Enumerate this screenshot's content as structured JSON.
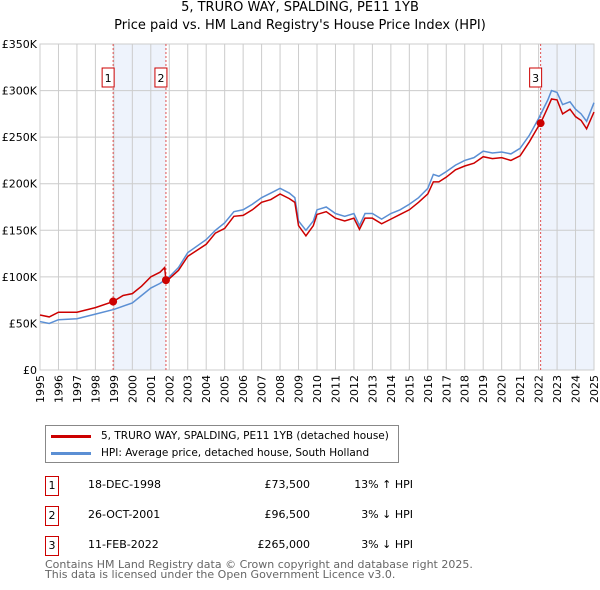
{
  "chart_data": {
    "type": "line",
    "title": "5, TRURO WAY, SPALDING, PE11 1YB",
    "subtitle": "Price paid vs. HM Land Registry's House Price Index (HPI)",
    "xlim": [
      1995,
      2025
    ],
    "ylim": [
      0,
      350000
    ],
    "yticks": [
      0,
      50000,
      100000,
      150000,
      200000,
      250000,
      300000,
      350000
    ],
    "ytick_labels": [
      "£0",
      "£50K",
      "£100K",
      "£150K",
      "£200K",
      "£250K",
      "£300K",
      "£350K"
    ],
    "xticks": [
      "1995",
      "1996",
      "1997",
      "1998",
      "1999",
      "2000",
      "2001",
      "2002",
      "2003",
      "2004",
      "2005",
      "2006",
      "2007",
      "2008",
      "2009",
      "2010",
      "2011",
      "2012",
      "2013",
      "2014",
      "2015",
      "2016",
      "2017",
      "2018",
      "2019",
      "2020",
      "2021",
      "2022",
      "2023",
      "2024",
      "2025"
    ],
    "grid": true,
    "series": [
      {
        "name": "5, TRURO WAY, SPALDING, PE11 1YB (detached house)",
        "color": "#cc0000",
        "points": [
          [
            1995,
            59
          ],
          [
            1995.5,
            57
          ],
          [
            1996,
            62
          ],
          [
            1997,
            62
          ],
          [
            1998,
            67
          ],
          [
            1998.96,
            73.5
          ],
          [
            1999.5,
            80
          ],
          [
            2000,
            82
          ],
          [
            2000.5,
            90
          ],
          [
            2001,
            100
          ],
          [
            2001.5,
            105
          ],
          [
            2001.75,
            110
          ],
          [
            2001.82,
            96.5
          ],
          [
            2002,
            98
          ],
          [
            2002.5,
            107
          ],
          [
            2003,
            122
          ],
          [
            2004,
            135
          ],
          [
            2004.5,
            147
          ],
          [
            2005,
            152
          ],
          [
            2005.5,
            165
          ],
          [
            2006,
            166
          ],
          [
            2006.5,
            172
          ],
          [
            2007,
            180
          ],
          [
            2007.5,
            183
          ],
          [
            2008,
            189
          ],
          [
            2008.5,
            184
          ],
          [
            2008.8,
            180
          ],
          [
            2009,
            155
          ],
          [
            2009.4,
            144
          ],
          [
            2009.8,
            155
          ],
          [
            2010,
            167
          ],
          [
            2010.5,
            170
          ],
          [
            2011,
            163
          ],
          [
            2011.5,
            160
          ],
          [
            2012,
            163
          ],
          [
            2012.3,
            151
          ],
          [
            2012.6,
            163
          ],
          [
            2013,
            163
          ],
          [
            2013.5,
            157
          ],
          [
            2014,
            162
          ],
          [
            2014.5,
            167
          ],
          [
            2015,
            172
          ],
          [
            2015.5,
            180
          ],
          [
            2016,
            189
          ],
          [
            2016.3,
            202
          ],
          [
            2016.6,
            202
          ],
          [
            2017,
            207
          ],
          [
            2017.5,
            215
          ],
          [
            2018,
            219
          ],
          [
            2018.5,
            222
          ],
          [
            2019,
            229
          ],
          [
            2019.5,
            227
          ],
          [
            2020,
            228
          ],
          [
            2020.5,
            225
          ],
          [
            2021,
            230
          ],
          [
            2021.5,
            245
          ],
          [
            2022,
            262
          ],
          [
            2022.11,
            265
          ],
          [
            2022.5,
            282
          ],
          [
            2022.7,
            291
          ],
          [
            2023,
            290
          ],
          [
            2023.3,
            275
          ],
          [
            2023.7,
            280
          ],
          [
            2024,
            272
          ],
          [
            2024.3,
            268
          ],
          [
            2024.6,
            259
          ],
          [
            2025,
            277
          ]
        ]
      },
      {
        "name": "HPI: Average price, detached house, South Holland",
        "color": "#5b8fd4",
        "points": [
          [
            1995,
            52
          ],
          [
            1995.5,
            50
          ],
          [
            1996,
            54
          ],
          [
            1997,
            55
          ],
          [
            1998,
            60
          ],
          [
            1999,
            65
          ],
          [
            2000,
            72
          ],
          [
            2000.5,
            80
          ],
          [
            2001,
            88
          ],
          [
            2001.5,
            93
          ],
          [
            2002,
            100
          ],
          [
            2002.5,
            110
          ],
          [
            2003,
            126
          ],
          [
            2004,
            140
          ],
          [
            2004.5,
            150
          ],
          [
            2005,
            158
          ],
          [
            2005.5,
            170
          ],
          [
            2006,
            172
          ],
          [
            2006.5,
            178
          ],
          [
            2007,
            185
          ],
          [
            2007.5,
            190
          ],
          [
            2008,
            195
          ],
          [
            2008.5,
            190
          ],
          [
            2008.8,
            185
          ],
          [
            2009,
            160
          ],
          [
            2009.4,
            150
          ],
          [
            2009.8,
            160
          ],
          [
            2010,
            172
          ],
          [
            2010.5,
            175
          ],
          [
            2011,
            168
          ],
          [
            2011.5,
            165
          ],
          [
            2012,
            168
          ],
          [
            2012.3,
            155
          ],
          [
            2012.6,
            168
          ],
          [
            2013,
            168
          ],
          [
            2013.5,
            162
          ],
          [
            2014,
            168
          ],
          [
            2014.5,
            172
          ],
          [
            2015,
            178
          ],
          [
            2015.5,
            185
          ],
          [
            2016,
            195
          ],
          [
            2016.3,
            210
          ],
          [
            2016.6,
            208
          ],
          [
            2017,
            213
          ],
          [
            2017.5,
            220
          ],
          [
            2018,
            225
          ],
          [
            2018.5,
            228
          ],
          [
            2019,
            235
          ],
          [
            2019.5,
            233
          ],
          [
            2020,
            234
          ],
          [
            2020.5,
            232
          ],
          [
            2021,
            238
          ],
          [
            2021.5,
            252
          ],
          [
            2022,
            270
          ],
          [
            2022.5,
            290
          ],
          [
            2022.7,
            300
          ],
          [
            2023,
            298
          ],
          [
            2023.3,
            285
          ],
          [
            2023.7,
            288
          ],
          [
            2024,
            280
          ],
          [
            2024.3,
            275
          ],
          [
            2024.6,
            267
          ],
          [
            2025,
            287
          ]
        ]
      }
    ],
    "value_unit": "thousand GBP",
    "sales": [
      {
        "label": "1",
        "year": 1998.96,
        "value": 73.5,
        "date": "18-DEC-1998",
        "price": "£73,500",
        "hpi": "13% ↑ HPI"
      },
      {
        "label": "2",
        "year": 2001.82,
        "value": 96.5,
        "date": "26-OCT-2001",
        "price": "£96,500",
        "hpi": "3% ↓ HPI"
      },
      {
        "label": "3",
        "year": 2022.11,
        "value": 265,
        "date": "11-FEB-2022",
        "price": "£265,000",
        "hpi": "3% ↓ HPI"
      }
    ],
    "shaded_ranges": [
      [
        1998.96,
        2001.82
      ],
      [
        2022.11,
        2025
      ]
    ]
  },
  "footer": {
    "line1": "Contains HM Land Registry data © Crown copyright and database right 2025.",
    "line2": "This data is licensed under the Open Government Licence v3.0."
  }
}
